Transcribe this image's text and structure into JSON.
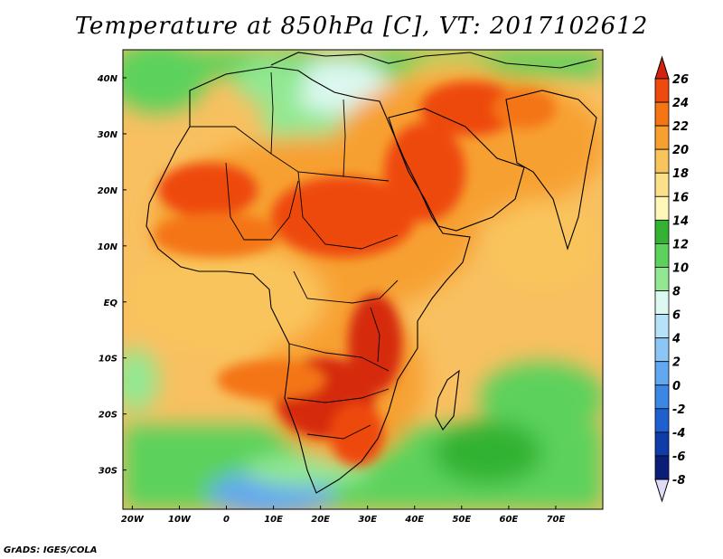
{
  "title": "Temperature at 850hPa [C], VT: 2017102612",
  "credit": "GrADS: IGES/COLA",
  "map": {
    "lon_range": [
      -22,
      80
    ],
    "lat_range": [
      -37,
      45
    ],
    "x_ticks": [
      {
        "lon": -20,
        "label": "20W"
      },
      {
        "lon": -10,
        "label": "10W"
      },
      {
        "lon": 0,
        "label": "0"
      },
      {
        "lon": 10,
        "label": "10E"
      },
      {
        "lon": 20,
        "label": "20E"
      },
      {
        "lon": 30,
        "label": "30E"
      },
      {
        "lon": 40,
        "label": "40E"
      },
      {
        "lon": 50,
        "label": "50E"
      },
      {
        "lon": 60,
        "label": "60E"
      },
      {
        "lon": 70,
        "label": "70E"
      }
    ],
    "y_ticks": [
      {
        "lat": 40,
        "label": "40N"
      },
      {
        "lat": 30,
        "label": "30N"
      },
      {
        "lat": 20,
        "label": "20N"
      },
      {
        "lat": 10,
        "label": "10N"
      },
      {
        "lat": 0,
        "label": "EQ"
      },
      {
        "lat": -10,
        "label": "10S"
      },
      {
        "lat": -20,
        "label": "20S"
      },
      {
        "lat": -30,
        "label": "30S"
      }
    ]
  },
  "colorbar": {
    "levels": [
      "26",
      "24",
      "22",
      "20",
      "18",
      "16",
      "14",
      "12",
      "10",
      "8",
      "6",
      "4",
      "2",
      "0",
      "-2",
      "-4",
      "-6",
      "-8"
    ],
    "colors": [
      "#d62a10",
      "#ee4a0e",
      "#f47512",
      "#f7a030",
      "#f9c45c",
      "#fbe08a",
      "#fff7b8",
      "#33b233",
      "#5cd25c",
      "#92e892",
      "#dcf8f0",
      "#b6e2f8",
      "#8cc6f6",
      "#62a8f0",
      "#3c86e6",
      "#1f60d0",
      "#0f3ca8",
      "#0a1e78"
    ],
    "top_color": "#d4200e",
    "bottom_color": "#e0dcf8"
  }
}
